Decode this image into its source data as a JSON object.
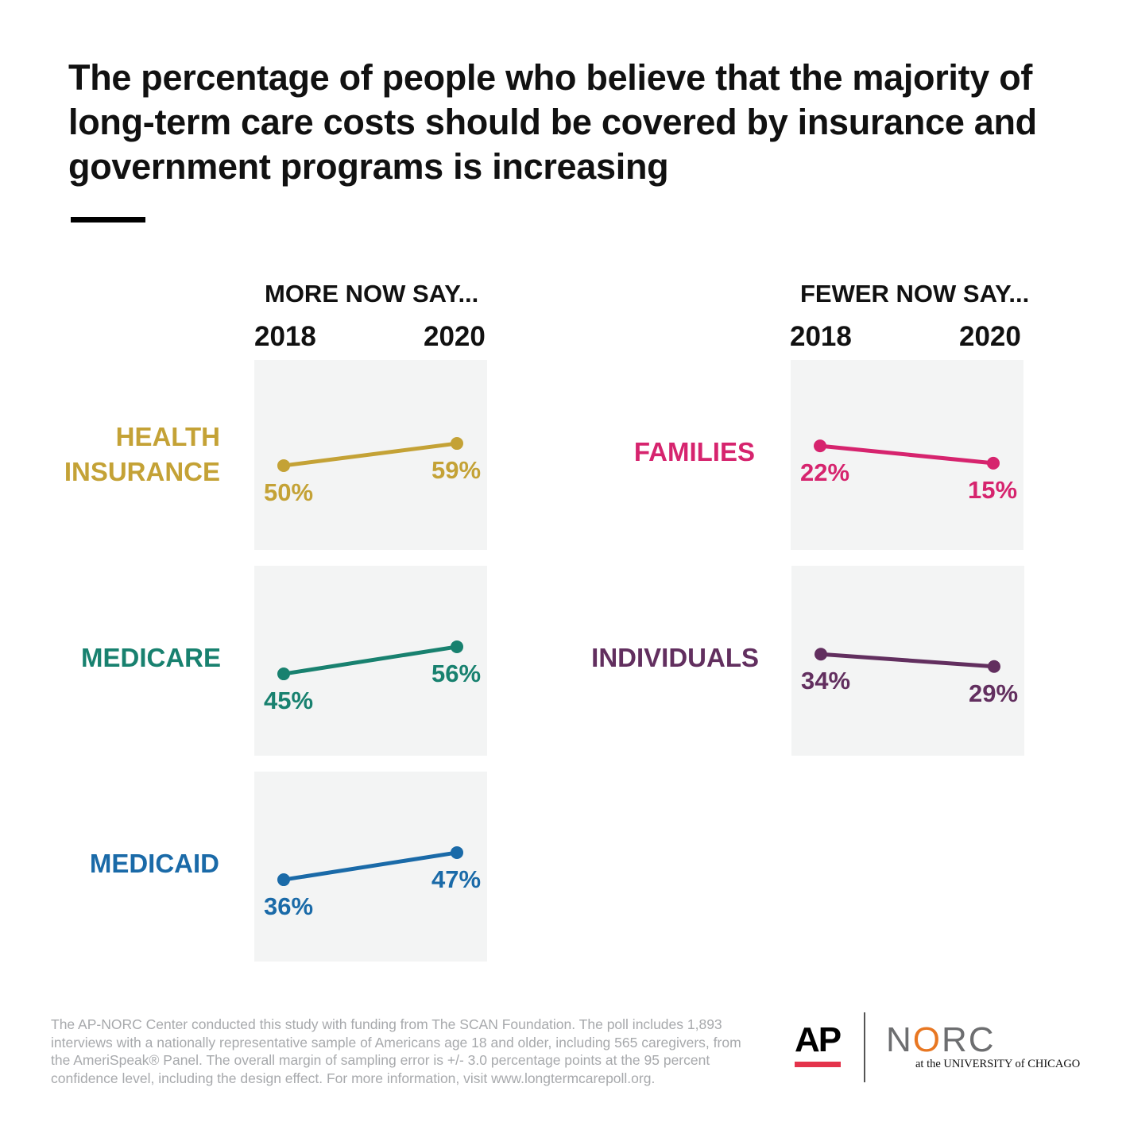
{
  "title": "The percentage of people who believe that the majority of long-term care costs should be covered by insurance and government programs is increasing",
  "columns": {
    "left": {
      "heading": "MORE NOW SAY...",
      "year_start": "2018",
      "year_end": "2020"
    },
    "right": {
      "heading": "FEWER NOW SAY...",
      "year_start": "2018",
      "year_end": "2020"
    }
  },
  "chart_data": {
    "type": "line",
    "x": [
      "2018",
      "2020"
    ],
    "series": [
      {
        "name": "HEALTH INSURANCE",
        "values": [
          50,
          59
        ],
        "labels": [
          "50%",
          "59%"
        ],
        "color": "#c4a236"
      },
      {
        "name": "MEDICARE",
        "values": [
          45,
          56
        ],
        "labels": [
          "45%",
          "56%"
        ],
        "color": "#18816f"
      },
      {
        "name": "MEDICAID",
        "values": [
          36,
          47
        ],
        "labels": [
          "36%",
          "47%"
        ],
        "color": "#1a6aa8"
      },
      {
        "name": "FAMILIES",
        "values": [
          22,
          15
        ],
        "labels": [
          "22%",
          "15%"
        ],
        "color": "#d6246e"
      },
      {
        "name": "INDIVIDUALS",
        "values": [
          34,
          29
        ],
        "labels": [
          "34%",
          "29%"
        ],
        "color": "#622f5f"
      }
    ],
    "grid": false
  },
  "footnote": "The AP-NORC Center conducted this study with funding from The SCAN Foundation. The poll includes 1,893 interviews with a nationally representative sample of Americans age 18 and older, including 565 caregivers, from the AmeriSpeak® Panel. The overall margin of sampling error is +/- 3.0 percentage points at the 95 percent confidence level, including the design effect. For more information, visit www.longtermcarepoll.org.",
  "logos": {
    "ap": "AP",
    "norc_n": "N",
    "norc_o": "O",
    "norc_rc": "RC",
    "norc_sub": "at the UNIVERSITY of CHICAGO"
  }
}
